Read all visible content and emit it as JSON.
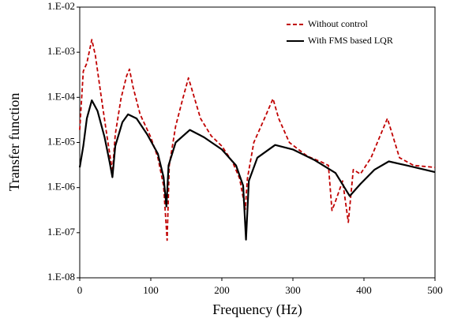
{
  "chart_data": {
    "type": "line",
    "xlabel": "Frequency (Hz)",
    "ylabel": "Transfer function",
    "xlim": [
      0,
      500
    ],
    "xticks": [
      0,
      100,
      200,
      300,
      400,
      500
    ],
    "ylim": [
      1e-08,
      0.01
    ],
    "log_y": true,
    "yticks": [
      {
        "value": 1e-08,
        "label": "1.E-08"
      },
      {
        "value": 1e-07,
        "label": "1.E-07"
      },
      {
        "value": 1e-06,
        "label": "1.E-06"
      },
      {
        "value": 1e-05,
        "label": "1.E-05"
      },
      {
        "value": 0.0001,
        "label": "1.E-04"
      },
      {
        "value": 0.001,
        "label": "1.E-03"
      },
      {
        "value": 0.01,
        "label": "1.E-02"
      }
    ],
    "grid": false,
    "legend": "upper right",
    "series": [
      {
        "name": "Without control",
        "color": "#c00000",
        "dashed": true,
        "x": [
          0,
          5,
          10,
          17,
          22,
          30,
          38,
          44,
          46,
          50,
          58,
          66,
          70,
          75,
          85,
          100,
          110,
          118,
          123,
          126,
          135,
          145,
          153,
          160,
          170,
          185,
          200,
          215,
          225,
          233,
          236,
          245,
          260,
          272,
          280,
          295,
          320,
          340,
          350,
          355,
          360,
          370,
          378,
          385,
          395,
          410,
          425,
          433,
          440,
          450,
          470,
          500
        ],
        "values": [
          1.9e-05,
          0.00038,
          0.00057,
          0.0019,
          0.00085,
          0.00011,
          1.5e-05,
          3.7e-06,
          2.2e-06,
          1.5e-05,
          9.3e-05,
          0.0003,
          0.00042,
          0.00017,
          4.2e-05,
          1.3e-05,
          4.6e-06,
          1.1e-06,
          6.8e-08,
          3.1e-06,
          2.3e-05,
          9.3e-05,
          0.00027,
          0.000115,
          3.4e-05,
          1.4e-05,
          8.3e-06,
          3.7e-06,
          1.6e-06,
          3.3e-07,
          1.6e-06,
          1e-05,
          3.4e-05,
          9.3e-05,
          3.4e-05,
          1e-05,
          5e-06,
          3.7e-06,
          3.1e-06,
          3.1e-07,
          5e-07,
          1.4e-06,
          1.7e-07,
          2.5e-06,
          2e-06,
          4.6e-06,
          1.7e-05,
          3.4e-05,
          1.5e-05,
          4.6e-06,
          3.1e-06,
          2.8e-06
        ]
      },
      {
        "name": "With FMS based LQR",
        "color": "#000000",
        "dashed": false,
        "x": [
          0,
          5,
          10,
          17,
          25,
          35,
          42,
          46,
          50,
          60,
          68,
          80,
          95,
          110,
          118,
          122,
          125,
          135,
          155,
          175,
          200,
          220,
          230,
          234,
          238,
          250,
          275,
          300,
          330,
          360,
          380,
          395,
          415,
          435,
          460,
          500
        ],
        "values": [
          2.8e-06,
          8.3e-06,
          3.4e-05,
          8.6e-05,
          5e-05,
          1.3e-05,
          3.7e-06,
          1.7e-06,
          8.3e-06,
          2.8e-05,
          4.2e-05,
          3.4e-05,
          1.5e-05,
          5.6e-06,
          1.7e-06,
          3.8e-07,
          3.1e-06,
          1e-05,
          1.9e-05,
          1.3e-05,
          7e-06,
          3.1e-06,
          1.1e-06,
          7e-08,
          1.4e-06,
          4.6e-06,
          8.8e-06,
          7e-06,
          4.1e-06,
          2.1e-06,
          6.5e-07,
          1.2e-06,
          2.5e-06,
          3.8e-06,
          3.1e-06,
          2.2e-06
        ]
      }
    ]
  }
}
